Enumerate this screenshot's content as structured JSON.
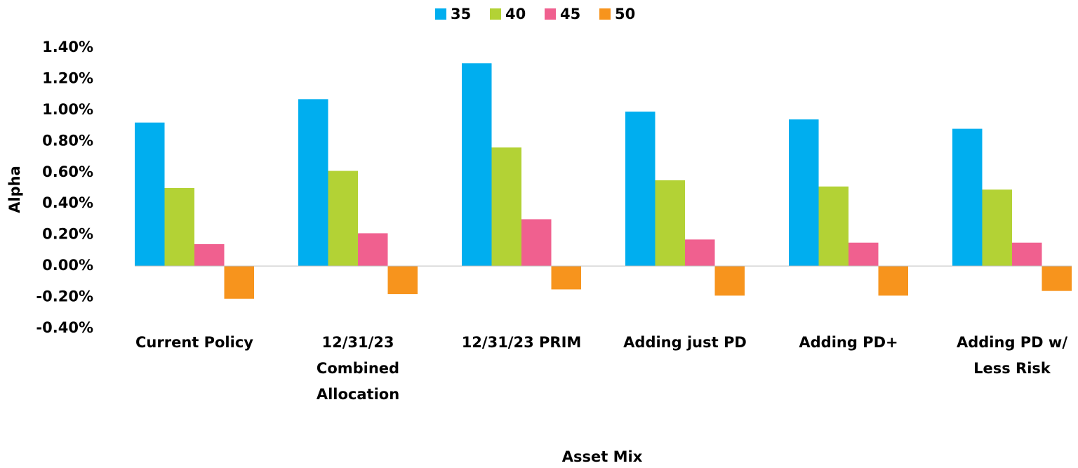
{
  "chart_data": {
    "type": "bar",
    "categories": [
      "Current Policy",
      "12/31/23 Combined Allocation",
      "12/31/23 PRIM",
      "Adding just PD",
      "Adding PD+",
      "Adding PD w/ Less Risk"
    ],
    "series": [
      {
        "name": "35",
        "color": "#00aeef",
        "values": [
          0.92,
          1.07,
          1.3,
          0.99,
          0.94,
          0.88
        ]
      },
      {
        "name": "40",
        "color": "#b3d235",
        "values": [
          0.5,
          0.61,
          0.76,
          0.55,
          0.51,
          0.49
        ]
      },
      {
        "name": "45",
        "color": "#f0608f",
        "values": [
          0.14,
          0.21,
          0.3,
          0.17,
          0.15,
          0.15
        ]
      },
      {
        "name": "50",
        "color": "#f7941d",
        "values": [
          -0.21,
          -0.18,
          -0.15,
          -0.19,
          -0.19,
          -0.16
        ]
      }
    ],
    "x_label": "Asset Mix",
    "y_label": "Alpha",
    "ylim": [
      -0.4,
      1.4
    ],
    "yticks": [
      {
        "value": -0.4,
        "label": "-0.40%"
      },
      {
        "value": -0.2,
        "label": "-0.20%"
      },
      {
        "value": 0,
        "label": "0.00%"
      },
      {
        "value": 0.2,
        "label": "0.20%"
      },
      {
        "value": 0.4,
        "label": "0.40%"
      },
      {
        "value": 0.6,
        "label": "0.60%"
      },
      {
        "value": 0.8,
        "label": "0.80%"
      },
      {
        "value": 1.0,
        "label": "1.00%"
      },
      {
        "value": 1.2,
        "label": "1.20%"
      },
      {
        "value": 1.4,
        "label": "1.40%"
      }
    ],
    "legend": "top",
    "grid": false
  }
}
